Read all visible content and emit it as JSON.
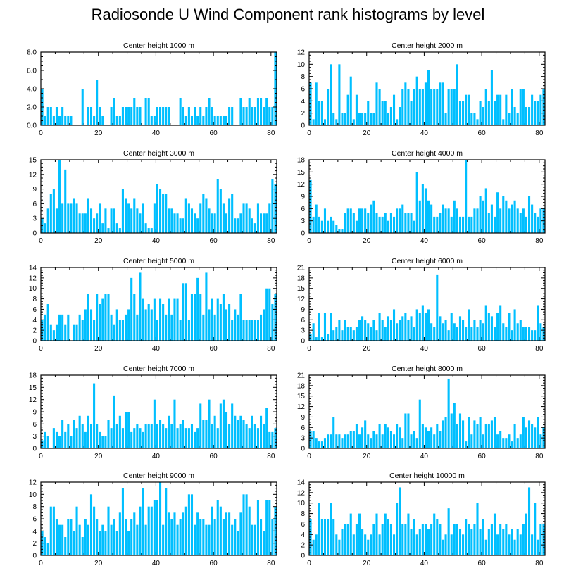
{
  "title": "Radiosonde U Wind Component rank histograms by level",
  "bar_color": "#00bfff",
  "chart_data": [
    {
      "type": "bar",
      "title": "Center height 1000 m",
      "xlim": [
        0,
        82
      ],
      "ylim": [
        0,
        8
      ],
      "xticks": [
        0,
        20,
        40,
        60,
        80
      ],
      "yticks": [
        0,
        2,
        4,
        6,
        8
      ],
      "ytick_labels": [
        "0.0",
        "2.0",
        "4.0",
        "6.0",
        "8.0"
      ],
      "values": [
        4,
        1,
        2,
        2,
        1,
        2,
        1,
        2,
        1,
        1,
        1,
        0,
        0,
        0,
        4,
        0,
        2,
        2,
        1,
        5,
        2,
        1,
        0,
        0,
        2,
        3,
        1,
        1,
        2,
        2,
        2,
        2,
        3,
        2,
        2,
        0,
        3,
        3,
        1,
        1,
        2,
        2,
        2,
        2,
        2,
        0,
        0,
        0,
        3,
        2,
        1,
        2,
        1,
        2,
        1,
        2,
        1,
        2,
        3,
        2,
        1,
        1,
        1,
        1,
        1,
        2,
        2,
        0,
        0,
        3,
        2,
        2,
        3,
        2,
        2,
        3,
        3,
        2,
        3,
        2,
        2,
        8
      ]
    },
    {
      "type": "bar",
      "title": "Center height 2000 m",
      "xlim": [
        0,
        82
      ],
      "ylim": [
        0,
        12
      ],
      "xticks": [
        0,
        20,
        40,
        60,
        80
      ],
      "yticks": [
        0,
        2,
        4,
        6,
        8,
        10,
        12
      ],
      "ytick_labels": [
        "0",
        "2",
        "4",
        "6",
        "8",
        "10",
        "12"
      ],
      "values": [
        7,
        1,
        7,
        4,
        4,
        1,
        6,
        10,
        2,
        1,
        10,
        2,
        2,
        5,
        8,
        1,
        5,
        2,
        2,
        2,
        4,
        2,
        2,
        7,
        6,
        4,
        4,
        2,
        3,
        5,
        1,
        3,
        6,
        7,
        6,
        4,
        6,
        8,
        6,
        6,
        7,
        9,
        6,
        6,
        6,
        7,
        7,
        2,
        6,
        6,
        6,
        10,
        4,
        4,
        5,
        5,
        2,
        2,
        1,
        4,
        3,
        6,
        4,
        9,
        4,
        5,
        5,
        1,
        5,
        2,
        6,
        3,
        2,
        6,
        6,
        3,
        3,
        5,
        4,
        4,
        5,
        6
      ]
    },
    {
      "type": "bar",
      "title": "Center height 3000 m",
      "xlim": [
        0,
        82
      ],
      "ylim": [
        0,
        15
      ],
      "xticks": [
        0,
        20,
        40,
        60,
        80
      ],
      "yticks": [
        0,
        3,
        6,
        9,
        12,
        15
      ],
      "ytick_labels": [
        "0",
        "3",
        "6",
        "9",
        "12",
        "15"
      ],
      "values": [
        3,
        2,
        5,
        8,
        9,
        5,
        15,
        6,
        13,
        6,
        6,
        7,
        6,
        4,
        4,
        4,
        7,
        5,
        3,
        4,
        6,
        2,
        5,
        1,
        5,
        5,
        2,
        1,
        9,
        7,
        6,
        5,
        7,
        5,
        4,
        6,
        2,
        1,
        1,
        6,
        10,
        9,
        8,
        8,
        5,
        5,
        4,
        4,
        3,
        3,
        7,
        6,
        5,
        4,
        3,
        6,
        8,
        7,
        5,
        4,
        4,
        11,
        9,
        6,
        4,
        7,
        8,
        3,
        3,
        4,
        6,
        6,
        5,
        3,
        2,
        6,
        4,
        4,
        4,
        6,
        11,
        10
      ]
    },
    {
      "type": "bar",
      "title": "Center height 4000 m",
      "xlim": [
        0,
        82
      ],
      "ylim": [
        0,
        18
      ],
      "xticks": [
        0,
        20,
        40,
        60,
        80
      ],
      "yticks": [
        0,
        3,
        6,
        9,
        12,
        15,
        18
      ],
      "ytick_labels": [
        "0",
        "3",
        "6",
        "9",
        "12",
        "15",
        "18"
      ],
      "values": [
        13,
        4,
        7,
        4,
        3,
        6,
        3,
        4,
        3,
        2,
        1,
        1,
        5,
        6,
        6,
        5,
        3,
        6,
        6,
        6,
        5,
        7,
        8,
        5,
        4,
        4,
        5,
        3,
        5,
        4,
        6,
        6,
        7,
        5,
        5,
        5,
        3,
        15,
        8,
        12,
        11,
        8,
        7,
        4,
        4,
        5,
        7,
        6,
        6,
        4,
        8,
        6,
        4,
        4,
        18,
        4,
        4,
        6,
        6,
        9,
        8,
        11,
        5,
        7,
        4,
        10,
        6,
        9,
        8,
        6,
        7,
        8,
        6,
        5,
        6,
        4,
        9,
        7,
        5,
        4,
        6,
        6
      ]
    },
    {
      "type": "bar",
      "title": "Center height 5000 m",
      "xlim": [
        0,
        82
      ],
      "ylim": [
        0,
        14
      ],
      "xticks": [
        0,
        20,
        40,
        60,
        80
      ],
      "yticks": [
        0,
        2,
        4,
        6,
        8,
        10,
        12,
        14
      ],
      "ytick_labels": [
        "0",
        "2",
        "4",
        "6",
        "8",
        "10",
        "12",
        "14"
      ],
      "values": [
        4,
        5,
        7,
        3,
        2,
        3,
        5,
        5,
        3,
        5,
        0,
        3,
        3,
        5,
        4,
        6,
        9,
        6,
        4,
        9,
        7,
        8,
        9,
        9,
        5,
        3,
        6,
        4,
        4,
        5,
        6,
        12,
        9,
        5,
        13,
        8,
        6,
        7,
        6,
        8,
        4,
        8,
        7,
        5,
        8,
        5,
        8,
        8,
        4,
        11,
        11,
        4,
        9,
        9,
        12,
        9,
        5,
        13,
        6,
        8,
        5,
        8,
        7,
        9,
        6,
        7,
        4,
        6,
        5,
        9,
        4,
        4,
        4,
        4,
        4,
        4,
        5,
        6,
        10,
        10,
        7,
        9
      ]
    },
    {
      "type": "bar",
      "title": "Center height 6000 m",
      "xlim": [
        0,
        82
      ],
      "ylim": [
        0,
        21
      ],
      "xticks": [
        0,
        20,
        40,
        60,
        80
      ],
      "yticks": [
        0,
        3,
        6,
        9,
        12,
        15,
        18,
        21
      ],
      "ytick_labels": [
        "0",
        "3",
        "6",
        "9",
        "12",
        "15",
        "18",
        "21"
      ],
      "values": [
        2,
        5,
        1,
        8,
        1,
        8,
        2,
        8,
        3,
        4,
        6,
        3,
        6,
        4,
        4,
        3,
        4,
        6,
        7,
        6,
        5,
        4,
        6,
        3,
        8,
        6,
        4,
        7,
        6,
        9,
        5,
        6,
        7,
        8,
        6,
        7,
        4,
        9,
        8,
        10,
        8,
        9,
        5,
        4,
        19,
        7,
        5,
        6,
        3,
        8,
        5,
        4,
        7,
        6,
        4,
        9,
        4,
        6,
        4,
        6,
        5,
        10,
        8,
        7,
        4,
        8,
        10,
        5,
        4,
        8,
        3,
        9,
        5,
        6,
        4,
        4,
        4,
        3,
        3,
        10,
        5,
        4
      ]
    },
    {
      "type": "bar",
      "title": "Center height 7000 m",
      "xlim": [
        0,
        82
      ],
      "ylim": [
        0,
        18
      ],
      "xticks": [
        0,
        20,
        40,
        60,
        80
      ],
      "yticks": [
        0,
        3,
        6,
        9,
        12,
        15,
        18
      ],
      "ytick_labels": [
        "0",
        "3",
        "6",
        "9",
        "12",
        "15",
        "18"
      ],
      "values": [
        2,
        4,
        3,
        0,
        5,
        4,
        3,
        7,
        4,
        6,
        3,
        7,
        5,
        8,
        6,
        4,
        8,
        6,
        16,
        6,
        4,
        3,
        3,
        7,
        5,
        13,
        6,
        8,
        5,
        9,
        9,
        4,
        5,
        6,
        5,
        4,
        6,
        6,
        6,
        12,
        6,
        7,
        6,
        5,
        8,
        6,
        12,
        5,
        6,
        7,
        5,
        5,
        6,
        4,
        5,
        11,
        7,
        7,
        12,
        6,
        8,
        5,
        11,
        12,
        9,
        6,
        11,
        8,
        7,
        8,
        7,
        6,
        5,
        8,
        6,
        5,
        8,
        6,
        10,
        4,
        4,
        5
      ]
    },
    {
      "type": "bar",
      "title": "Center height 8000 m",
      "xlim": [
        0,
        82
      ],
      "ylim": [
        0,
        21
      ],
      "xticks": [
        0,
        20,
        40,
        60,
        80
      ],
      "yticks": [
        0,
        3,
        6,
        9,
        12,
        15,
        18,
        21
      ],
      "ytick_labels": [
        "0",
        "3",
        "6",
        "9",
        "12",
        "15",
        "18",
        "21"
      ],
      "values": [
        5,
        5,
        3,
        2,
        2,
        3,
        4,
        4,
        9,
        4,
        4,
        3,
        4,
        4,
        5,
        5,
        7,
        4,
        6,
        8,
        4,
        3,
        5,
        4,
        7,
        4,
        7,
        6,
        5,
        4,
        7,
        6,
        3,
        10,
        10,
        4,
        5,
        3,
        14,
        7,
        6,
        5,
        6,
        4,
        7,
        5,
        8,
        9,
        20,
        10,
        13,
        7,
        10,
        8,
        2,
        9,
        4,
        8,
        7,
        9,
        4,
        7,
        7,
        8,
        9,
        4,
        5,
        3,
        3,
        4,
        2,
        7,
        3,
        4,
        9,
        6,
        8,
        7,
        6,
        9,
        4,
        6
      ]
    },
    {
      "type": "bar",
      "title": "Center height 9000 m",
      "xlim": [
        0,
        82
      ],
      "ylim": [
        0,
        12
      ],
      "xticks": [
        0,
        20,
        40,
        60,
        80
      ],
      "yticks": [
        0,
        2,
        4,
        6,
        8,
        10,
        12
      ],
      "ytick_labels": [
        "0",
        "2",
        "4",
        "6",
        "8",
        "10",
        "12"
      ],
      "values": [
        4,
        3,
        2,
        8,
        8,
        6,
        5,
        5,
        3,
        6,
        6,
        4,
        8,
        5,
        3,
        6,
        5,
        10,
        8,
        6,
        4,
        5,
        4,
        8,
        5,
        6,
        4,
        7,
        11,
        6,
        4,
        6,
        7,
        5,
        8,
        11,
        5,
        8,
        8,
        9,
        9,
        12,
        5,
        11,
        7,
        6,
        7,
        5,
        6,
        7,
        8,
        10,
        10,
        5,
        7,
        6,
        6,
        5,
        5,
        8,
        6,
        9,
        8,
        6,
        7,
        7,
        5,
        6,
        4,
        7,
        10,
        10,
        8,
        5,
        5,
        9,
        6,
        4,
        9,
        9,
        6,
        8
      ]
    },
    {
      "type": "bar",
      "title": "Center height 10000 m",
      "xlim": [
        0,
        82
      ],
      "ylim": [
        0,
        14
      ],
      "xticks": [
        0,
        20,
        40,
        60,
        80
      ],
      "yticks": [
        0,
        2,
        4,
        6,
        8,
        10,
        12,
        14
      ],
      "ytick_labels": [
        "0",
        "2",
        "4",
        "6",
        "8",
        "10",
        "12",
        "14"
      ],
      "values": [
        7,
        3,
        4,
        10,
        7,
        7,
        7,
        10,
        7,
        4,
        3,
        5,
        6,
        6,
        8,
        4,
        6,
        8,
        5,
        4,
        3,
        4,
        6,
        8,
        4,
        6,
        8,
        7,
        6,
        4,
        10,
        13,
        6,
        6,
        8,
        5,
        7,
        4,
        5,
        6,
        6,
        5,
        6,
        8,
        7,
        6,
        3,
        4,
        9,
        4,
        6,
        6,
        5,
        4,
        7,
        6,
        5,
        6,
        10,
        5,
        7,
        3,
        5,
        6,
        8,
        4,
        6,
        5,
        6,
        4,
        5,
        3,
        5,
        4,
        6,
        8,
        13,
        4,
        10,
        3,
        6,
        6
      ]
    }
  ]
}
